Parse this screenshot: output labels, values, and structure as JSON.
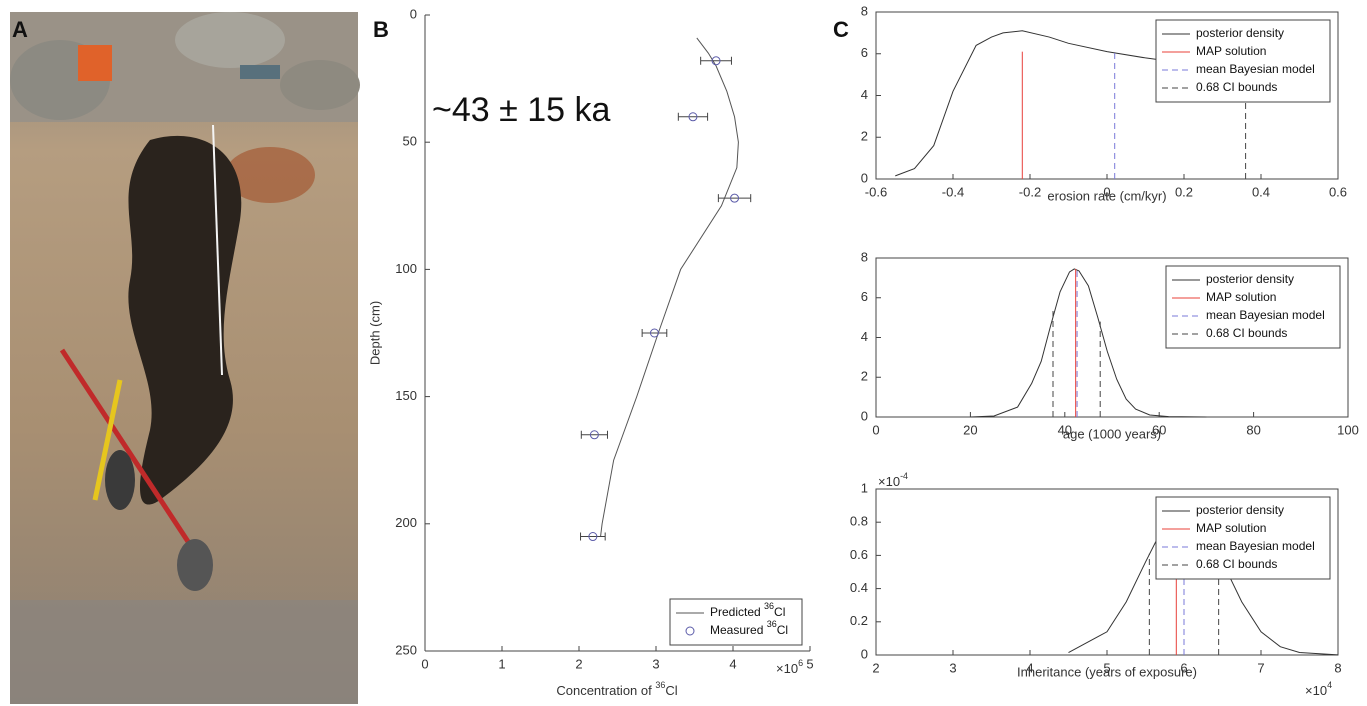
{
  "photo": {
    "panel_label": "A"
  },
  "chart_data": [
    {
      "type": "line",
      "panel_label": "B",
      "annotation": "~43 ± 15 ka",
      "xlabel": [
        "Concentration of ",
        "36",
        "Cl"
      ],
      "ylabel": "Depth (cm)",
      "x_multiplier": [
        "×10",
        "6"
      ],
      "xlim": [
        0,
        5
      ],
      "xticks": [
        0,
        1,
        2,
        3,
        4,
        5
      ],
      "ylim": [
        0,
        250
      ],
      "yticks": [
        0,
        50,
        100,
        150,
        200,
        250
      ],
      "y_reversed": true,
      "box": false,
      "legend": "lower right",
      "series": [
        {
          "name": [
            "Predicted ",
            "36",
            "Cl"
          ],
          "color": "#555555",
          "x": [
            3.53,
            3.68,
            3.78,
            3.92,
            4.02,
            4.07,
            4.05,
            3.85,
            3.32,
            3.03,
            2.75,
            2.45,
            2.3,
            2.28
          ],
          "y": [
            9,
            15,
            20,
            30,
            40,
            50,
            60,
            75,
            100,
            125,
            150,
            175,
            200,
            205
          ]
        },
        {
          "name": [
            "Measured ",
            "36",
            "Cl"
          ],
          "color": "#5a5aa8",
          "marker": "o",
          "x": [
            3.78,
            3.48,
            4.02,
            2.98,
            2.2,
            2.18
          ],
          "y": [
            18,
            40,
            72,
            125,
            165,
            205
          ],
          "xerr": [
            0.2,
            0.19,
            0.21,
            0.16,
            0.17,
            0.16
          ]
        }
      ]
    },
    {
      "type": "line",
      "panel_label": "C",
      "xlabel": "erosion rate (cm/kyr)",
      "xlim": [
        -0.6,
        0.6
      ],
      "xticks": [
        -0.6,
        -0.4,
        -0.2,
        0,
        0.2,
        0.4,
        0.6
      ],
      "ylim": [
        0,
        8
      ],
      "yticks": [
        0,
        2,
        4,
        6,
        8
      ],
      "box": true,
      "legend": "upper right",
      "series": [
        {
          "name": "posterior density",
          "color": "#333333",
          "x": [
            -0.55,
            -0.5,
            -0.45,
            -0.4,
            -0.34,
            -0.3,
            -0.27,
            -0.22,
            -0.15,
            -0.1,
            0,
            0.1,
            0.2,
            0.3,
            0.36
          ],
          "y": [
            0.15,
            0.5,
            1.6,
            4.2,
            6.4,
            6.8,
            7.0,
            7.1,
            6.8,
            6.5,
            6.1,
            5.8,
            5.55,
            5.3,
            5.15
          ]
        },
        {
          "name": "MAP solution",
          "color": "#e8403a",
          "style": "vline",
          "x": [
            -0.22
          ],
          "y": [
            6.1
          ]
        },
        {
          "name": "mean Bayesian model",
          "color": "#7a7ad8",
          "style": "vline",
          "dash": true,
          "x": [
            0.02
          ],
          "y": [
            6.1
          ]
        },
        {
          "name": "0.68 CI bounds",
          "color": "#444444",
          "style": "vline",
          "dash": true,
          "x": [
            0.36
          ],
          "y": [
            5.1
          ]
        }
      ]
    },
    {
      "type": "line",
      "xlabel": "age (1000 years)",
      "xlim": [
        0,
        100
      ],
      "xticks": [
        0,
        20,
        40,
        60,
        80,
        100
      ],
      "ylim": [
        0,
        8
      ],
      "yticks": [
        0,
        2,
        4,
        6,
        8
      ],
      "box": true,
      "legend": "upper right",
      "series": [
        {
          "name": "posterior density",
          "color": "#333333",
          "x": [
            20,
            25,
            30,
            33,
            35,
            37,
            39,
            41,
            42,
            43,
            45,
            47,
            49,
            51,
            53,
            55,
            58,
            62,
            70
          ],
          "y": [
            0,
            0.05,
            0.5,
            1.7,
            2.8,
            4.6,
            6.3,
            7.3,
            7.45,
            7.35,
            6.6,
            5.0,
            3.3,
            1.9,
            0.9,
            0.4,
            0.1,
            0.02,
            0
          ]
        },
        {
          "name": "MAP solution",
          "color": "#e8403a",
          "style": "vline",
          "x": [
            42.3
          ],
          "y": [
            7.45
          ]
        },
        {
          "name": "mean Bayesian model",
          "color": "#7a7ad8",
          "style": "vline",
          "dash": true,
          "x": [
            42.6
          ],
          "y": [
            7.4
          ]
        },
        {
          "name": "0.68 CI bounds",
          "color": "#444444",
          "style": "vline",
          "dash": true,
          "x": [
            37.5,
            47.5
          ],
          "y": [
            5.5,
            4.8
          ]
        }
      ]
    },
    {
      "type": "line",
      "xlabel": "Inheritance (years of exposure)",
      "x_multiplier": [
        "×10",
        "4"
      ],
      "y_multiplier": [
        "×10",
        "-4"
      ],
      "xlim": [
        2,
        8
      ],
      "xticks": [
        2,
        3,
        4,
        5,
        6,
        7,
        8
      ],
      "ylim": [
        0,
        1
      ],
      "yticks": [
        0,
        0.2,
        0.4,
        0.6,
        0.8,
        1
      ],
      "box": true,
      "legend": "upper right",
      "series": [
        {
          "name": "posterior density",
          "color": "#333333",
          "x": [
            4.5,
            5,
            5.25,
            5.5,
            5.75,
            6,
            6.25,
            6.5,
            6.75,
            7,
            7.25,
            7.5,
            8
          ],
          "y": [
            0.015,
            0.14,
            0.32,
            0.56,
            0.79,
            0.88,
            0.79,
            0.56,
            0.32,
            0.14,
            0.05,
            0.015,
            0.001
          ]
        },
        {
          "name": "MAP solution",
          "color": "#e8403a",
          "style": "vline",
          "x": [
            5.9
          ],
          "y": [
            0.75
          ]
        },
        {
          "name": "mean Bayesian model",
          "color": "#7a7ad8",
          "style": "vline",
          "dash": true,
          "x": [
            6.0
          ],
          "y": [
            0.75
          ]
        },
        {
          "name": "0.68 CI bounds",
          "color": "#444444",
          "style": "vline",
          "dash": true,
          "x": [
            5.55,
            6.45
          ],
          "y": [
            0.61,
            0.6
          ]
        }
      ]
    }
  ]
}
